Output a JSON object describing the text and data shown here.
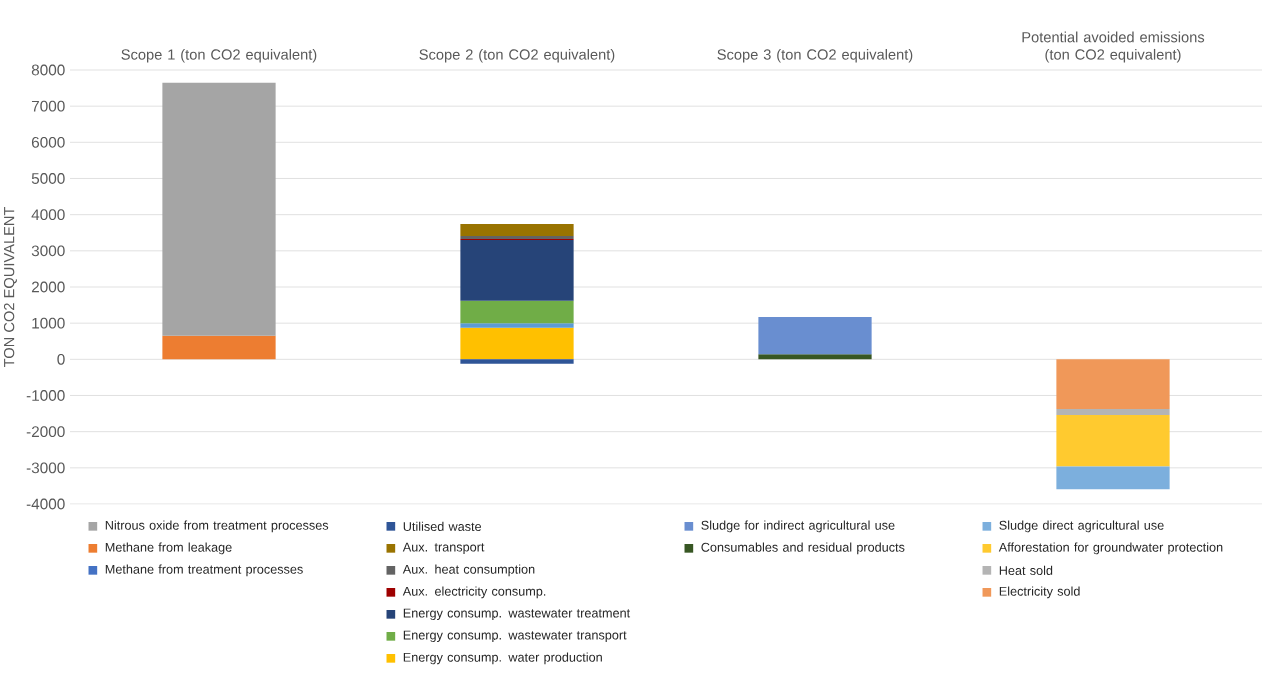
{
  "chart_data": {
    "type": "bar",
    "stacked": true,
    "ylabel": "TON CO2 EQUIVALENT",
    "categories": [
      "Scope 1 (ton CO2 equivalent)",
      "Scope 2  (ton CO2 equivalent)",
      "Scope 3  (ton CO2 equivalent)",
      "Potential avoided emissions  (ton CO2 equivalent)"
    ],
    "ylim": [
      -4000,
      8000
    ],
    "yticks": [
      -4000,
      -3000,
      -2000,
      -1000,
      0,
      1000,
      2000,
      3000,
      4000,
      5000,
      6000,
      7000,
      8000
    ],
    "grid": "y",
    "legend": "bottom",
    "series": [
      {
        "name": "Methane from treatment processes",
        "color": "#4472c4",
        "values": [
          0,
          0,
          0,
          0
        ]
      },
      {
        "name": "Methane from leakage",
        "color": "#ed7d31",
        "values": [
          650,
          0,
          0,
          0
        ]
      },
      {
        "name": "Nitrous oxide from treatment processes",
        "color": "#a5a5a5",
        "values": [
          7000,
          0,
          0,
          0
        ]
      },
      {
        "name": "Energy consump. water production",
        "color": "#ffc000",
        "values": [
          0,
          870,
          0,
          0
        ]
      },
      {
        "color": "#5b9bd5",
        "values": [
          0,
          130,
          0,
          0
        ]
      },
      {
        "name": "Energy consump. wastewater transport",
        "color": "#70ad47",
        "values": [
          0,
          620,
          0,
          0
        ]
      },
      {
        "name": "Energy consump. wastewater treatment",
        "color": "#264478",
        "values": [
          0,
          1680,
          0,
          0
        ]
      },
      {
        "name": "Aux. electricity consump.",
        "color": "#9e0000",
        "values": [
          0,
          30,
          0,
          0
        ]
      },
      {
        "name": "Aux. heat consumption",
        "color": "#636363",
        "values": [
          0,
          80,
          0,
          0
        ]
      },
      {
        "name": "Aux. transport",
        "color": "#997300",
        "values": [
          0,
          330,
          0,
          0
        ]
      },
      {
        "name": "Utilised waste",
        "color": "#2f5597",
        "values": [
          0,
          -120,
          0,
          0
        ]
      },
      {
        "name": "Consumables and residual products",
        "color": "#375623",
        "values": [
          0,
          0,
          140,
          0
        ]
      },
      {
        "name": "Sludge for indirect agricultural use",
        "color": "#698ed0",
        "values": [
          0,
          0,
          1030,
          0
        ]
      },
      {
        "name": "Electricity sold",
        "color": "#f09859",
        "values": [
          0,
          0,
          0,
          -1370
        ]
      },
      {
        "name": "Heat sold",
        "color": "#b4b4b4",
        "values": [
          0,
          0,
          0,
          -170
        ]
      },
      {
        "name": "Afforestation for groundwater protection",
        "color": "#ffca2f",
        "values": [
          0,
          0,
          0,
          -1420
        ]
      },
      {
        "name": "Sludge direct agricultural use",
        "color": "#7cafdd",
        "values": [
          0,
          0,
          0,
          -630
        ]
      }
    ]
  }
}
